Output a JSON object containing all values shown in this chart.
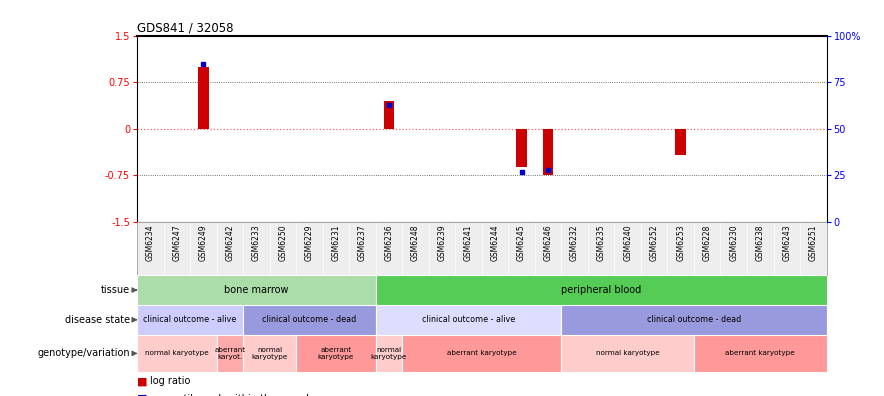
{
  "title": "GDS841 / 32058",
  "samples": [
    "GSM6234",
    "GSM6247",
    "GSM6249",
    "GSM6242",
    "GSM6233",
    "GSM6250",
    "GSM6229",
    "GSM6231",
    "GSM6237",
    "GSM6236",
    "GSM6248",
    "GSM6239",
    "GSM6241",
    "GSM6244",
    "GSM6245",
    "GSM6246",
    "GSM6232",
    "GSM6235",
    "GSM6240",
    "GSM6252",
    "GSM6253",
    "GSM6228",
    "GSM6230",
    "GSM6238",
    "GSM6243",
    "GSM6251"
  ],
  "log_ratio": [
    0.0,
    0.0,
    1.0,
    0.0,
    0.0,
    0.0,
    0.0,
    0.0,
    0.0,
    0.45,
    0.0,
    0.0,
    0.0,
    0.0,
    -0.62,
    -0.75,
    0.0,
    0.0,
    0.0,
    0.0,
    -0.42,
    0.0,
    0.0,
    0.0,
    0.0,
    0.0
  ],
  "percentile_raw": [
    0.0,
    0.0,
    0.85,
    0.0,
    0.0,
    0.0,
    0.0,
    0.0,
    0.0,
    0.63,
    0.0,
    0.0,
    0.0,
    0.0,
    0.27,
    0.28,
    0.0,
    0.0,
    0.0,
    0.0,
    0.0,
    0.0,
    0.0,
    0.0,
    0.0,
    0.0
  ],
  "tissue_blocks": [
    {
      "label": "bone marrow",
      "start": 0,
      "end": 9,
      "color": "#AADDAA"
    },
    {
      "label": "peripheral blood",
      "start": 9,
      "end": 26,
      "color": "#55CC55"
    }
  ],
  "disease_blocks": [
    {
      "label": "clinical outcome - alive",
      "start": 0,
      "end": 4,
      "color": "#CCCCFF"
    },
    {
      "label": "clinical outcome - dead",
      "start": 4,
      "end": 9,
      "color": "#9999DD"
    },
    {
      "label": "clinical outcome - alive",
      "start": 9,
      "end": 16,
      "color": "#DDDDFF"
    },
    {
      "label": "clinical outcome - dead",
      "start": 16,
      "end": 26,
      "color": "#9999DD"
    }
  ],
  "geno_blocks": [
    {
      "label": "normal karyotype",
      "start": 0,
      "end": 3,
      "color": "#FFCCCC"
    },
    {
      "label": "aberrant\nkaryot.",
      "start": 3,
      "end": 4,
      "color": "#FFAAAA"
    },
    {
      "label": "normal\nkaryotype",
      "start": 4,
      "end": 6,
      "color": "#FFCCCC"
    },
    {
      "label": "aberrant\nkaryotype",
      "start": 6,
      "end": 9,
      "color": "#FF9999"
    },
    {
      "label": "normal\nkaryotype",
      "start": 9,
      "end": 10,
      "color": "#FFCCCC"
    },
    {
      "label": "aberrant karyotype",
      "start": 10,
      "end": 16,
      "color": "#FF9999"
    },
    {
      "label": "normal karyotype",
      "start": 16,
      "end": 21,
      "color": "#FFCCCC"
    },
    {
      "label": "aberrant karyotype",
      "start": 21,
      "end": 26,
      "color": "#FF9999"
    }
  ],
  "red_color": "#CC0000",
  "blue_color": "#0000CC",
  "zero_line_color": "#FF6666",
  "grid_line_color": "#444444",
  "label_color": "#333333",
  "xticklabel_bg": "#DDDDDD"
}
